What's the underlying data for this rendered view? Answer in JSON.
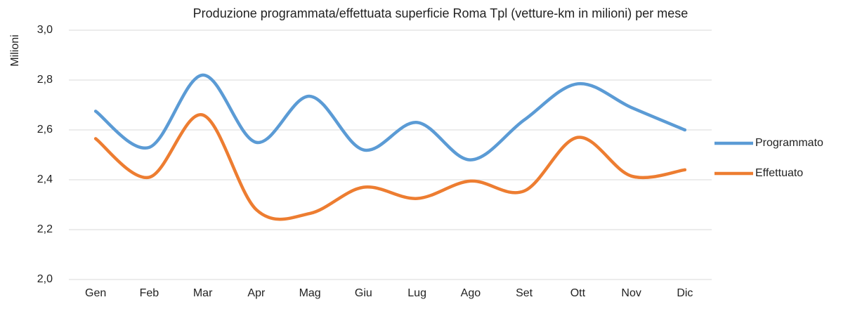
{
  "chart_data": {
    "type": "line",
    "title": "Produzione programmata/effettuata superficie Roma Tpl (vetture-km in milioni) per mese",
    "y_label": "Milioni",
    "categories": [
      "Gen",
      "Feb",
      "Mar",
      "Apr",
      "Mag",
      "Giu",
      "Lug",
      "Ago",
      "Set",
      "Ott",
      "Nov",
      "Dic"
    ],
    "series": [
      {
        "name": "Programmato",
        "color": "#5b9bd5",
        "values": [
          2.675,
          2.53,
          2.82,
          2.55,
          2.735,
          2.52,
          2.63,
          2.48,
          2.64,
          2.785,
          2.69,
          2.6
        ]
      },
      {
        "name": "Effettuato",
        "color": "#ed7d31",
        "values": [
          2.565,
          2.41,
          2.66,
          2.28,
          2.265,
          2.37,
          2.325,
          2.395,
          2.355,
          2.57,
          2.415,
          2.44
        ]
      }
    ],
    "ylim": [
      2.0,
      3.0
    ],
    "yticks": [
      {
        "value": 2.0,
        "label": "2,0"
      },
      {
        "value": 2.2,
        "label": "2,2"
      },
      {
        "value": 2.4,
        "label": "2,4"
      },
      {
        "value": 2.6,
        "label": "2,6"
      },
      {
        "value": 2.8,
        "label": "2,8"
      },
      {
        "value": 3.0,
        "label": "3,0"
      }
    ],
    "grid": true,
    "smooth": true,
    "legend": "right"
  }
}
